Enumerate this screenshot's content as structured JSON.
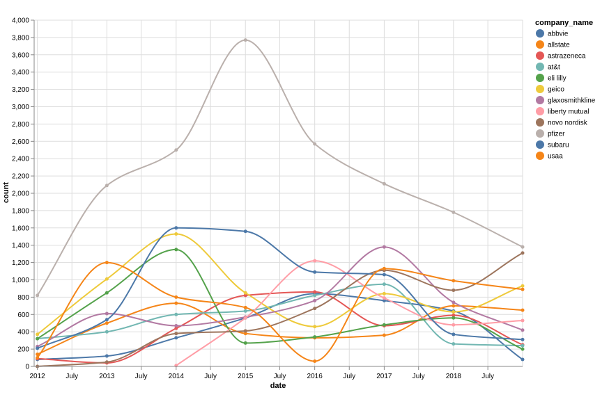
{
  "chart_data": {
    "type": "line",
    "xlabel": "date",
    "ylabel": "count",
    "ylim": [
      0,
      4000
    ],
    "x_domain": [
      "2011-12-15",
      "2018-12-31"
    ],
    "x": [
      "2012-01-01",
      "2013-01-01",
      "2014-01-01",
      "2015-01-01",
      "2016-01-01",
      "2017-01-01",
      "2018-01-01",
      "2018-12-31"
    ],
    "x_ticks": [
      {
        "date": "2012-01-01",
        "label": "2012"
      },
      {
        "date": "2012-07-01",
        "label": "July"
      },
      {
        "date": "2013-01-01",
        "label": "2013"
      },
      {
        "date": "2013-07-01",
        "label": "July"
      },
      {
        "date": "2014-01-01",
        "label": "2014"
      },
      {
        "date": "2014-07-01",
        "label": "July"
      },
      {
        "date": "2015-01-01",
        "label": "2015"
      },
      {
        "date": "2015-07-01",
        "label": "July"
      },
      {
        "date": "2016-01-01",
        "label": "2016"
      },
      {
        "date": "2016-07-01",
        "label": "July"
      },
      {
        "date": "2017-01-01",
        "label": "2017"
      },
      {
        "date": "2017-07-01",
        "label": "July"
      },
      {
        "date": "2018-01-01",
        "label": "2018"
      },
      {
        "date": "2018-07-01",
        "label": "July"
      }
    ],
    "y_ticks": [
      "0",
      "200",
      "400",
      "600",
      "800",
      "1,000",
      "1,200",
      "1,400",
      "1,600",
      "1,800",
      "2,000",
      "2,200",
      "2,400",
      "2,600",
      "2,800",
      "3,000",
      "3,200",
      "3,400",
      "3,600",
      "3,800",
      "4,000"
    ],
    "y_tick_values": [
      0,
      200,
      400,
      600,
      800,
      1000,
      1200,
      1400,
      1600,
      1800,
      2000,
      2200,
      2400,
      2600,
      2800,
      3000,
      3200,
      3400,
      3600,
      3800,
      4000
    ],
    "grid": true,
    "legend": {
      "title": "company_name",
      "position": "right"
    },
    "series": [
      {
        "name": "abbvie",
        "color": "#4c78a8",
        "values": [
          80,
          120,
          330,
          560,
          840,
          760,
          640,
          80
        ]
      },
      {
        "name": "allstate",
        "color": "#f58518",
        "values": [
          140,
          500,
          730,
          380,
          330,
          360,
          700,
          650
        ]
      },
      {
        "name": "astrazeneca",
        "color": "#e45756",
        "values": [
          90,
          40,
          440,
          820,
          860,
          470,
          590,
          250
        ]
      },
      {
        "name": "at&t",
        "color": "#72b7b2",
        "values": [
          320,
          400,
          600,
          640,
          820,
          950,
          260,
          240
        ]
      },
      {
        "name": "eli lilly",
        "color": "#54a24b",
        "values": [
          320,
          850,
          1350,
          270,
          340,
          480,
          560,
          200
        ]
      },
      {
        "name": "geico",
        "color": "#eeca3b",
        "values": [
          370,
          1010,
          1530,
          850,
          460,
          840,
          630,
          930
        ]
      },
      {
        "name": "glaxosmithkline",
        "color": "#b279a2",
        "values": [
          230,
          610,
          470,
          570,
          760,
          1380,
          740,
          420
        ]
      },
      {
        "name": "liberty mutual",
        "color": "#ff9da6",
        "values": [
          null,
          null,
          10,
          560,
          1220,
          790,
          480,
          530
        ]
      },
      {
        "name": "novo nordisk",
        "color": "#9d755d",
        "values": [
          0,
          50,
          380,
          410,
          670,
          1110,
          880,
          1310
        ]
      },
      {
        "name": "pfizer",
        "color": "#bab0ac",
        "values": [
          820,
          2090,
          2500,
          3770,
          2570,
          2110,
          1780,
          1380
        ]
      },
      {
        "name": "subaru",
        "color": "#4c78a8",
        "values": [
          210,
          540,
          1600,
          1560,
          1090,
          1060,
          370,
          310
        ]
      },
      {
        "name": "usaa",
        "color": "#f58518",
        "values": [
          100,
          1200,
          800,
          680,
          60,
          1130,
          990,
          890
        ]
      }
    ]
  }
}
